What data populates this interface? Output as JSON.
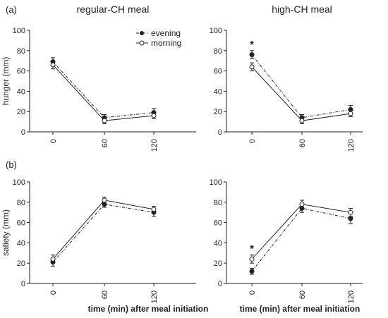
{
  "figure": {
    "panel_a_label": "(a)",
    "panel_b_label": "(b)",
    "col_left_title": "regular-CH meal",
    "col_right_title": "high-CH meal",
    "xlabel": "time (min) after meal initiation"
  },
  "legend": {
    "evening": "evening",
    "morning": "morning"
  },
  "colors": {
    "ink": "#222222",
    "open_marker": "#ffffff"
  },
  "chart_data": [
    {
      "type": "line",
      "title": "regular-CH meal",
      "xlabel": "",
      "ylabel": "hunger (mm)",
      "categories": [
        "0",
        "60",
        "120"
      ],
      "ylim": [
        0,
        100
      ],
      "yticks": [
        "0",
        "20",
        "40",
        "60",
        "80",
        "100"
      ],
      "series": [
        {
          "name": "evening",
          "marker": "filled",
          "dash": "dashdot",
          "values": [
            69,
            14,
            19
          ],
          "errors": [
            4,
            3,
            4
          ]
        },
        {
          "name": "morning",
          "marker": "open",
          "dash": "solid",
          "values": [
            66,
            11,
            16
          ],
          "errors": [
            4,
            3,
            3
          ]
        }
      ],
      "annotation": ""
    },
    {
      "type": "line",
      "title": "high-CH meal",
      "xlabel": "",
      "ylabel": "",
      "categories": [
        "0",
        "60",
        "120"
      ],
      "ylim": [
        0,
        100
      ],
      "yticks": [
        "0",
        "20",
        "40",
        "60",
        "80",
        "100"
      ],
      "series": [
        {
          "name": "evening",
          "marker": "filled",
          "dash": "dashdot",
          "values": [
            76,
            14,
            22
          ],
          "errors": [
            4,
            3,
            4
          ]
        },
        {
          "name": "morning",
          "marker": "open",
          "dash": "solid",
          "values": [
            64,
            11,
            18
          ],
          "errors": [
            4,
            3,
            3
          ]
        }
      ],
      "annotation": "*"
    },
    {
      "type": "line",
      "title": "",
      "xlabel": "time (min) after meal initiation",
      "ylabel": "satiety (mm)",
      "categories": [
        "0",
        "60",
        "120"
      ],
      "ylim": [
        0,
        100
      ],
      "yticks": [
        "0",
        "20",
        "40",
        "60",
        "80",
        "100"
      ],
      "series": [
        {
          "name": "evening",
          "marker": "filled",
          "dash": "dashdot",
          "values": [
            21,
            78,
            70
          ],
          "errors": [
            4,
            3,
            4
          ]
        },
        {
          "name": "morning",
          "marker": "open",
          "dash": "solid",
          "values": [
            24,
            82,
            73
          ],
          "errors": [
            4,
            3,
            3
          ]
        }
      ],
      "annotation": ""
    },
    {
      "type": "line",
      "title": "",
      "xlabel": "time (min) after meal initiation",
      "ylabel": "",
      "categories": [
        "0",
        "60",
        "120"
      ],
      "ylim": [
        0,
        100
      ],
      "yticks": [
        "0",
        "20",
        "40",
        "60",
        "80",
        "100"
      ],
      "series": [
        {
          "name": "evening",
          "marker": "filled",
          "dash": "dashdot",
          "values": [
            12,
            74,
            64
          ],
          "errors": [
            3,
            4,
            5
          ]
        },
        {
          "name": "morning",
          "marker": "open",
          "dash": "solid",
          "values": [
            24,
            78,
            70
          ],
          "errors": [
            4,
            4,
            4
          ]
        }
      ],
      "annotation": "*"
    }
  ]
}
